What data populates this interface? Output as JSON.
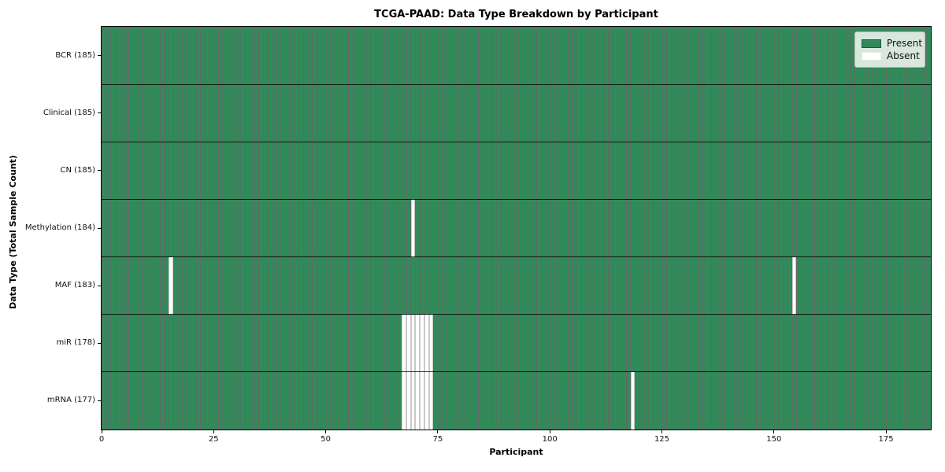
{
  "figure": {
    "title": "TCGA-PAAD: Data Type Breakdown by Participant",
    "xlabel": "Participant",
    "ylabel": "Data Type (Total Sample Count)"
  },
  "legend": {
    "items": [
      {
        "label": "Present",
        "color": "#318a59"
      },
      {
        "label": "Absent",
        "color": "#ffffff"
      }
    ]
  },
  "chart_data": {
    "type": "heatmap",
    "title": "TCGA-PAAD: Data Type Breakdown by Participant",
    "xlabel": "Participant",
    "ylabel": "Data Type (Total Sample Count)",
    "legend_entries": [
      "Present",
      "Absent"
    ],
    "legend_position": "upper right",
    "xlim": [
      0,
      185
    ],
    "x_ticks": [
      0,
      25,
      50,
      75,
      100,
      125,
      150,
      175
    ],
    "n_participants": 185,
    "colors": {
      "present": "#318a59",
      "absent": "#ffffff"
    },
    "rows": [
      {
        "label": "BCR (185)",
        "data_type": "BCR",
        "total_samples": 185,
        "absent_participants": []
      },
      {
        "label": "Clinical (185)",
        "data_type": "Clinical",
        "total_samples": 185,
        "absent_participants": []
      },
      {
        "label": "CN (185)",
        "data_type": "CN",
        "total_samples": 185,
        "absent_participants": []
      },
      {
        "label": "Methylation (184)",
        "data_type": "Methylation",
        "total_samples": 184,
        "absent_participants": [
          69
        ]
      },
      {
        "label": "MAF (183)",
        "data_type": "MAF",
        "total_samples": 183,
        "absent_participants": [
          15,
          154
        ]
      },
      {
        "label": "miR (178)",
        "data_type": "miR",
        "total_samples": 178,
        "absent_participants": [
          67,
          68,
          69,
          70,
          71,
          72,
          73
        ]
      },
      {
        "label": "mRNA (177)",
        "data_type": "mRNA",
        "total_samples": 177,
        "absent_participants": [
          67,
          68,
          69,
          70,
          71,
          72,
          73,
          118
        ]
      }
    ]
  }
}
